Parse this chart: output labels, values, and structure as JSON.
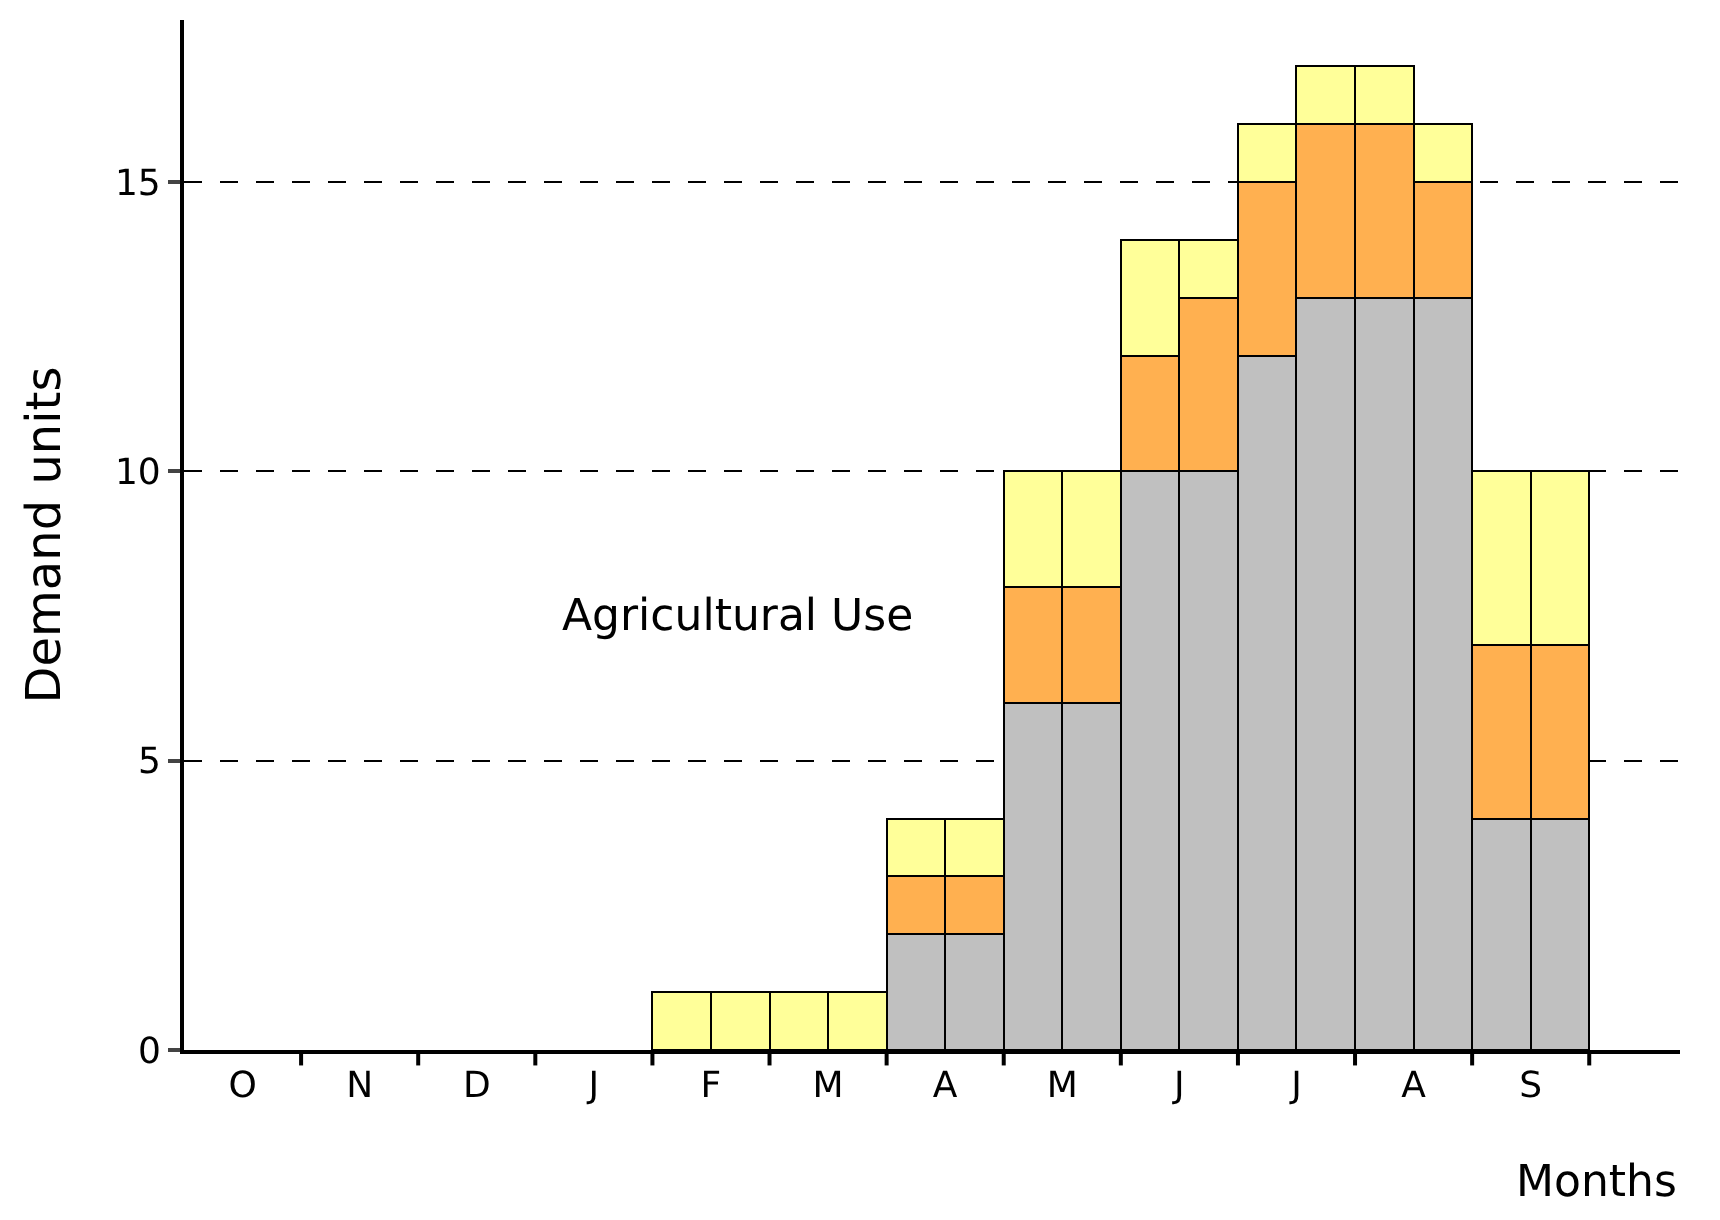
{
  "chart_data": {
    "type": "bar",
    "stacked": true,
    "categories": [
      "O",
      null,
      "N",
      null,
      "D",
      null,
      "J",
      null,
      "F",
      null,
      "M",
      null,
      "A",
      null,
      "M",
      null,
      "J",
      null,
      "J",
      null,
      "A",
      null,
      "S",
      null
    ],
    "series": [
      {
        "color": "#c0c0c0",
        "values": [
          0,
          0,
          0,
          0,
          0,
          0,
          0,
          0,
          0,
          0,
          0,
          0,
          2,
          2,
          6,
          6,
          10,
          10,
          12,
          13,
          13,
          13,
          4,
          4
        ]
      },
      {
        "color": "#ffb050",
        "values": [
          0,
          0,
          0,
          0,
          0,
          0,
          0,
          0,
          0,
          0,
          0,
          0,
          1,
          1,
          2,
          2,
          2,
          3,
          3,
          3,
          3,
          2,
          3,
          3
        ]
      },
      {
        "color": "#ffff99",
        "values": [
          0,
          0,
          0,
          0,
          0,
          0,
          0,
          0,
          1,
          1,
          1,
          1,
          1,
          1,
          2,
          2,
          2,
          1,
          1,
          1,
          1,
          1,
          3,
          3
        ]
      }
    ],
    "ylim": [
      0,
      17.8
    ],
    "yticks": [
      0,
      5,
      10,
      15
    ],
    "grid": "y",
    "xlabel": "Months",
    "ylabel": "Demand units",
    "annotations": [
      "Agricultural Use"
    ]
  }
}
